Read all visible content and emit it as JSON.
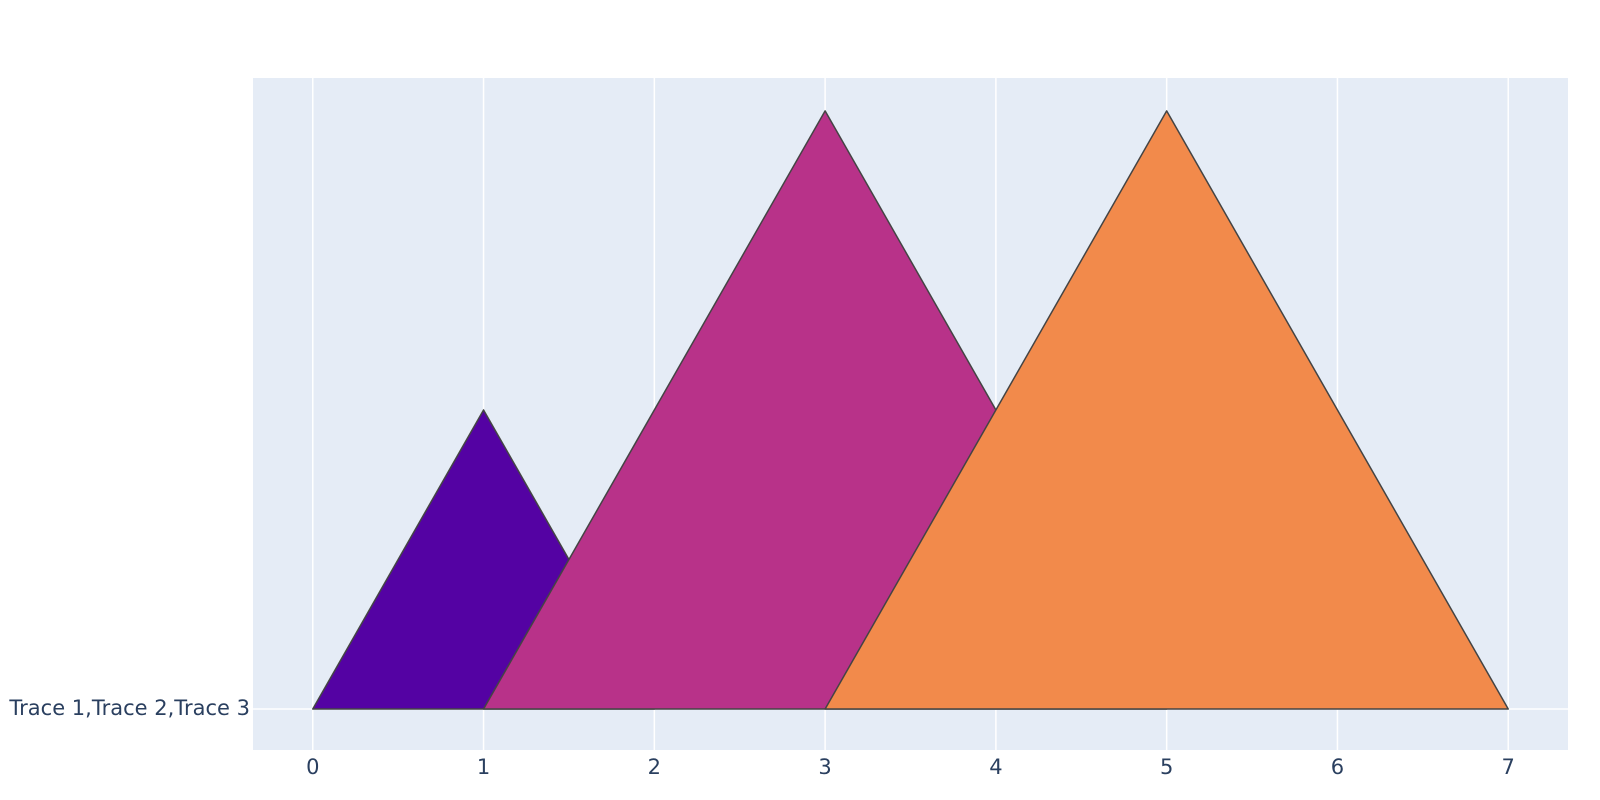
{
  "chart_data": {
    "type": "area",
    "series": [
      {
        "name": "Trace 1",
        "color": "#5402a3",
        "x": [
          0,
          1,
          2
        ],
        "values": [
          0,
          1,
          0
        ]
      },
      {
        "name": "Trace 2",
        "color": "#b83289",
        "x": [
          1,
          3,
          5
        ],
        "values": [
          0,
          2,
          0
        ]
      },
      {
        "name": "Trace 3",
        "color": "#f28a4b",
        "x": [
          3,
          5,
          7
        ],
        "values": [
          0,
          2,
          0
        ]
      }
    ],
    "xlim": [
      -0.35,
      7.35
    ],
    "xticks": [
      0,
      1,
      2,
      3,
      4,
      5,
      6,
      7
    ],
    "ylim": [
      -0.137,
      2.11
    ],
    "yticks": [
      {
        "value": 0,
        "label": "Trace 1,Trace 2,Trace 3"
      }
    ],
    "grid": true
  }
}
